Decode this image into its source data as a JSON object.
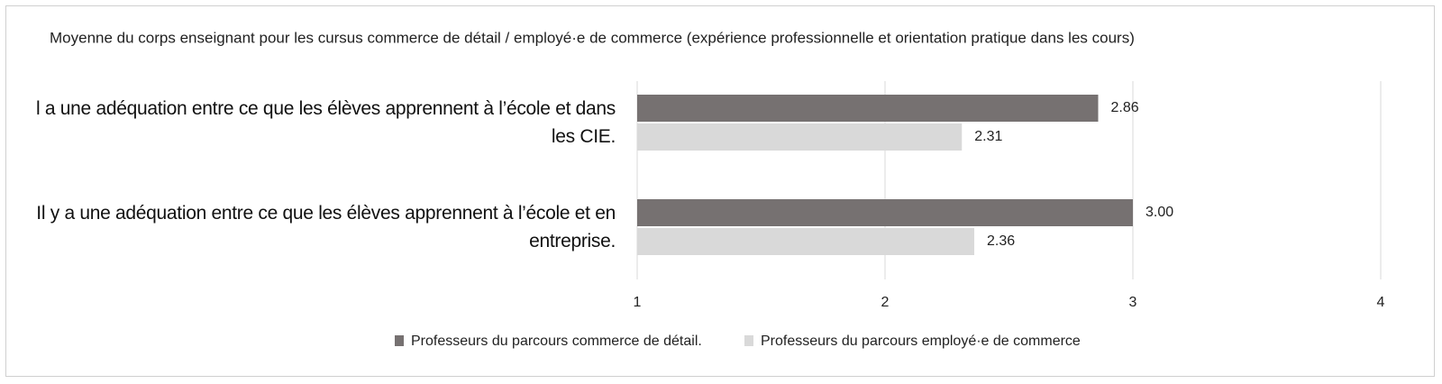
{
  "chart_data": {
    "type": "barh",
    "title": "Moyenne du corps enseignant pour les cursus commerce de détail / employé·e de commerce (expérience professionnelle et orientation pratique dans les cours)",
    "categories": [
      "l a une adéquation entre ce que les élèves apprennent à l’école et dans les CIE.",
      "Il y a une adéquation entre ce que les élèves apprennent à l’école et en entreprise."
    ],
    "series": [
      {
        "name": "Professeurs du parcours commerce de détail.",
        "color": "#767171",
        "values": [
          2.86,
          3
        ],
        "value_labels": [
          "2.86",
          "3.00"
        ]
      },
      {
        "name": "Professeurs du parcours employé·e de commerce",
        "color": "#d9d9d9",
        "values": [
          2.31,
          2.36
        ],
        "value_labels": [
          "2.31",
          "2.36"
        ]
      }
    ],
    "xlim": [
      1,
      4
    ],
    "xticks": [
      1,
      2,
      3,
      4
    ],
    "grid": true,
    "legend": "bottom"
  }
}
